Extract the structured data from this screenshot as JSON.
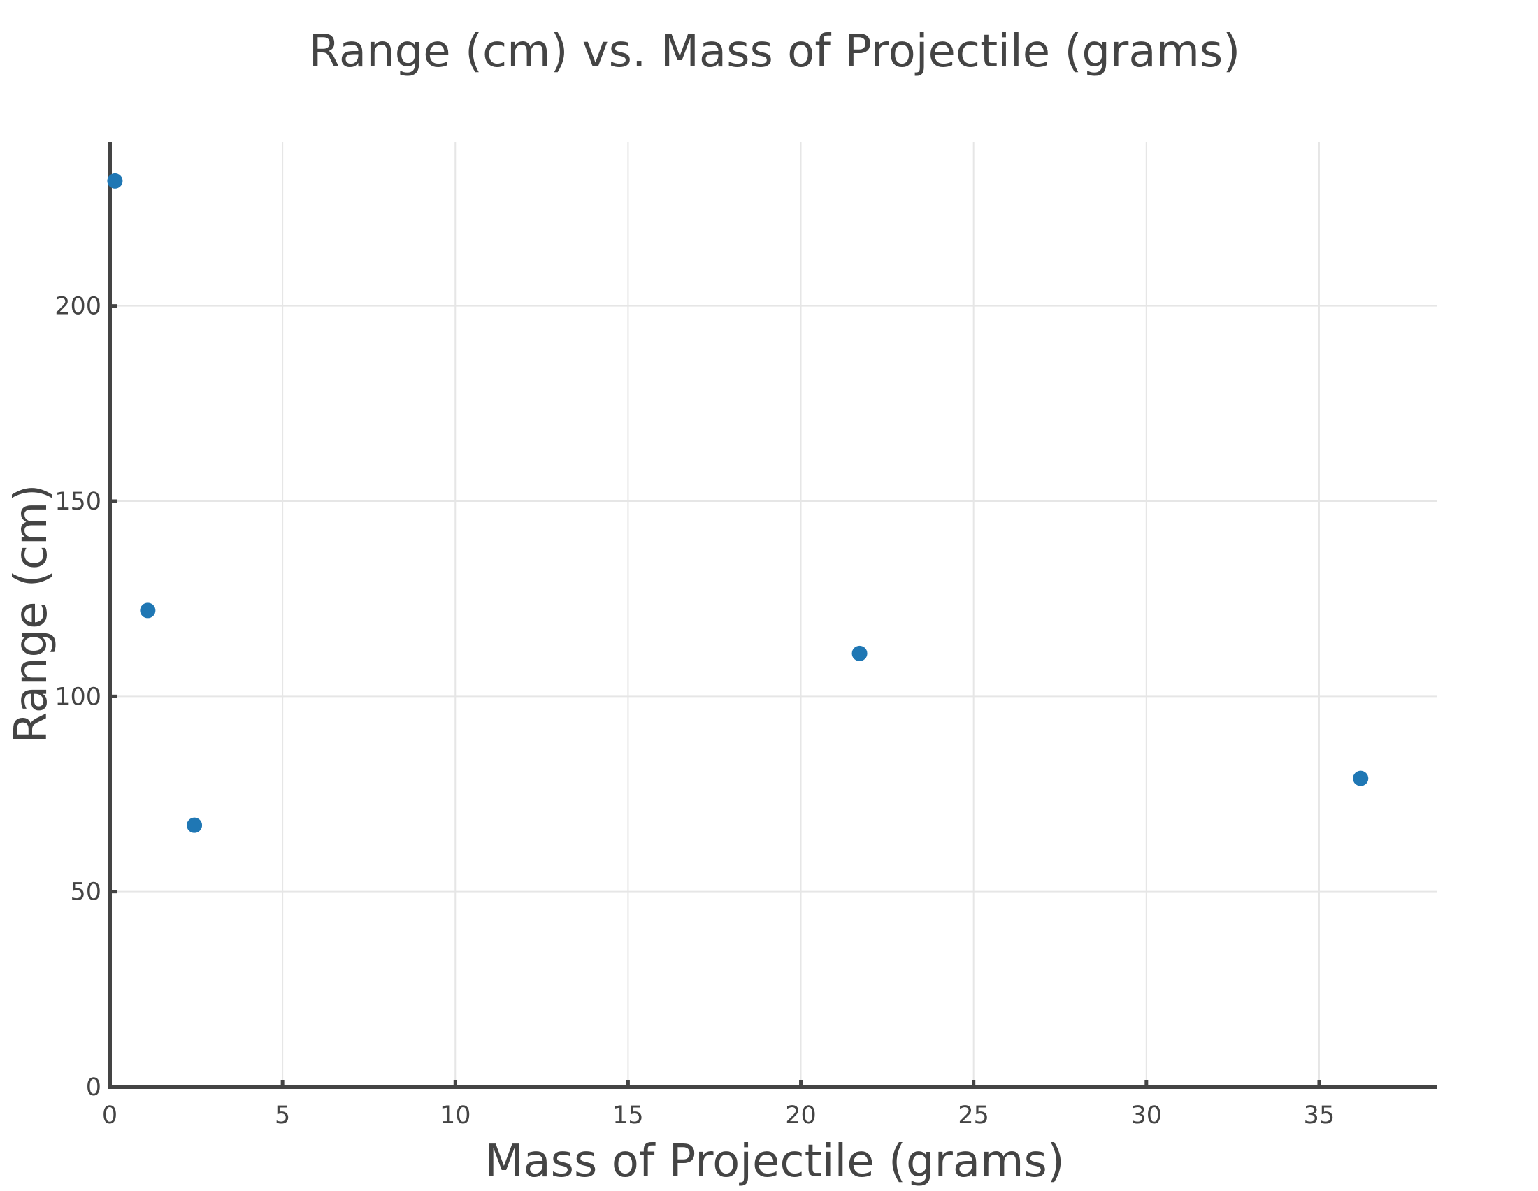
{
  "chart_data": {
    "type": "scatter",
    "title": "Range (cm) vs. Mass of Projectile (grams)",
    "xlabel": "Mass of Projectile (grams)",
    "ylabel": "Range (cm)",
    "xlim": [
      0,
      38.4
    ],
    "ylim": [
      0,
      242
    ],
    "xticks": [
      0,
      5,
      10,
      15,
      20,
      25,
      30,
      35
    ],
    "yticks": [
      0,
      50,
      100,
      150,
      200
    ],
    "grid": true,
    "legend": "none",
    "series": [
      {
        "color": "#1f77b4",
        "points": [
          {
            "x": 0.15,
            "y": 232
          },
          {
            "x": 1.1,
            "y": 122
          },
          {
            "x": 2.45,
            "y": 67
          },
          {
            "x": 21.7,
            "y": 111
          },
          {
            "x": 36.2,
            "y": 79
          }
        ]
      }
    ]
  }
}
